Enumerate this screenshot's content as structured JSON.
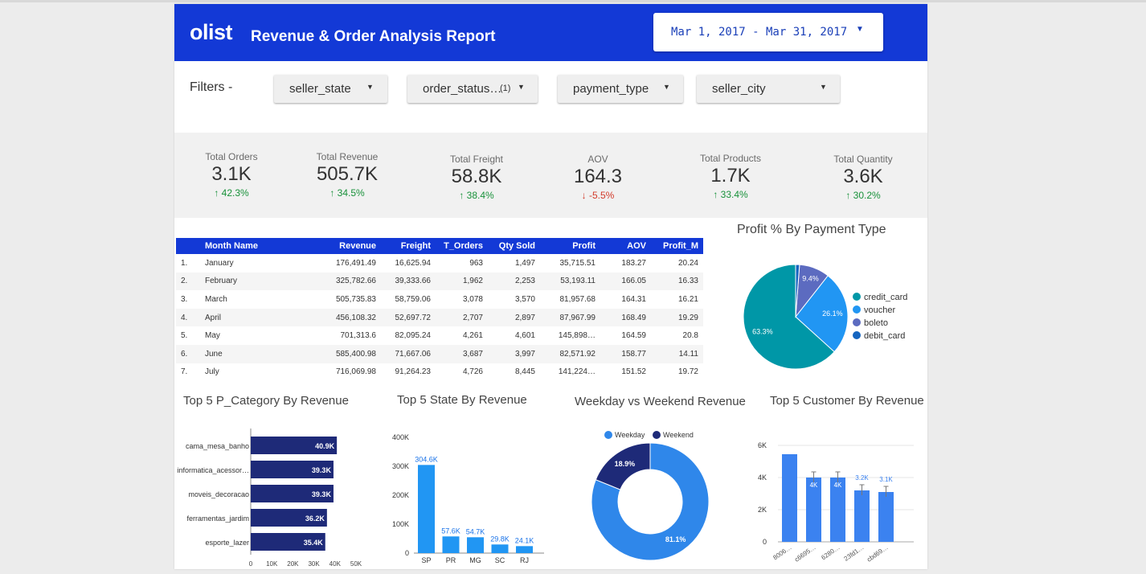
{
  "header": {
    "logo": "olist",
    "title": "Revenue & Order Analysis Report",
    "date_range": "Mar 1, 2017 - Mar 31, 2017",
    "date_caret": "▼"
  },
  "filters": {
    "label": "Filters -",
    "items": [
      {
        "label": "seller_state",
        "count": ""
      },
      {
        "label": "order_status…",
        "count": "(1)"
      },
      {
        "label": "payment_type",
        "count": ""
      },
      {
        "label": "seller_city",
        "count": ""
      }
    ],
    "caret": "▼"
  },
  "kpis": [
    {
      "label": "Total Orders",
      "value": "3.1K",
      "delta": "↑ 42.3%",
      "direction": "up"
    },
    {
      "label": "Total Revenue",
      "value": "505.7K",
      "delta": "↑ 34.5%",
      "direction": "up"
    },
    {
      "label": "Total Freight",
      "value": "58.8K",
      "delta": "↑ 38.4%",
      "direction": "up"
    },
    {
      "label": "AOV",
      "value": "164.3",
      "delta": "↓ -5.5%",
      "direction": "down"
    },
    {
      "label": "Total Products",
      "value": "1.7K",
      "delta": "↑ 33.4%",
      "direction": "up"
    },
    {
      "label": "Total Quantity",
      "value": "3.6K",
      "delta": "↑ 30.2%",
      "direction": "up"
    }
  ],
  "monthly_table": {
    "columns": [
      "",
      "Month Name",
      "Revenue",
      "Freight",
      "T_Orders",
      "Qty Sold",
      "Profit",
      "AOV",
      "Profit_M"
    ],
    "rows": [
      [
        "1.",
        "January",
        "176,491.49",
        "16,625.94",
        "963",
        "1,497",
        "35,715.51",
        "183.27",
        "20.24"
      ],
      [
        "2.",
        "February",
        "325,782.66",
        "39,333.66",
        "1,962",
        "2,253",
        "53,193.11",
        "166.05",
        "16.33"
      ],
      [
        "3.",
        "March",
        "505,735.83",
        "58,759.06",
        "3,078",
        "3,570",
        "81,957.68",
        "164.31",
        "16.21"
      ],
      [
        "4.",
        "April",
        "456,108.32",
        "52,697.72",
        "2,707",
        "2,897",
        "87,967.99",
        "168.49",
        "19.29"
      ],
      [
        "5.",
        "May",
        "701,313.6",
        "82,095.24",
        "4,261",
        "4,601",
        "145,898…",
        "164.59",
        "20.8"
      ],
      [
        "6.",
        "June",
        "585,400.98",
        "71,667.06",
        "3,687",
        "3,997",
        "82,571.92",
        "158.77",
        "14.11"
      ],
      [
        "7.",
        "July",
        "716,069.98",
        "91,264.23",
        "4,726",
        "8,445",
        "141,224…",
        "151.52",
        "19.72"
      ]
    ]
  },
  "chart_data": [
    {
      "type": "pie",
      "title": "Profit % By Payment Type",
      "categories": [
        "credit_card",
        "voucher",
        "boleto",
        "debit_card"
      ],
      "values": [
        63.3,
        26.1,
        9.4,
        1.2
      ],
      "labels": [
        "63.3%",
        "26.1%",
        "9.4%",
        ""
      ],
      "colors": [
        "#0097a7",
        "#2196f3",
        "#5c6bc0",
        "#1565c0"
      ],
      "legend": "right"
    },
    {
      "type": "bar",
      "orientation": "horizontal",
      "title": "Top 5 P_Category By Revenue",
      "categories": [
        "cama_mesa_banho",
        "informatica_acessor…",
        "moveis_decoracao",
        "ferramentas_jardim",
        "esporte_lazer"
      ],
      "values": [
        40.9,
        39.3,
        39.3,
        36.2,
        35.4
      ],
      "value_labels": [
        "40.9K",
        "39.3K",
        "39.3K",
        "36.2K",
        "35.4K"
      ],
      "xlim": [
        0,
        50
      ],
      "xticks": [
        "0",
        "10K",
        "20K",
        "30K",
        "40K",
        "50K"
      ],
      "color": "#1e2a78"
    },
    {
      "type": "bar",
      "title": "Top 5 State By Revenue",
      "categories": [
        "SP",
        "PR",
        "MG",
        "SC",
        "RJ"
      ],
      "values": [
        304.6,
        57.6,
        54.7,
        29.8,
        24.1
      ],
      "value_labels": [
        "304.6K",
        "57.6K",
        "54.7K",
        "29.8K",
        "24.1K"
      ],
      "ylim": [
        0,
        400
      ],
      "yticks": [
        "0",
        "100K",
        "200K",
        "300K",
        "400K"
      ],
      "color": "#2196f3"
    },
    {
      "type": "pie",
      "style": "donut",
      "title": "Weekday vs Weekend Revenue",
      "categories": [
        "Weekday",
        "Weekend"
      ],
      "values": [
        81.1,
        18.9
      ],
      "labels": [
        "81.1%",
        "18.9%"
      ],
      "colors": [
        "#2f87ea",
        "#1e2a78"
      ],
      "legend": "top"
    },
    {
      "type": "bar",
      "title": "Top 5 Customer By Revenue",
      "categories": [
        "8006…",
        "c6695…",
        "6280…",
        "23fd1…",
        "cbd69…"
      ],
      "values": [
        5.45,
        4.0,
        4.0,
        3.2,
        3.1
      ],
      "value_labels": [
        "",
        "4K",
        "4K",
        "3.2K",
        "3.1K"
      ],
      "ylim": [
        0,
        6
      ],
      "yticks": [
        "0",
        "2K",
        "4K",
        "6K"
      ],
      "grid": true,
      "error_bars": true,
      "color": "#3b82f0"
    }
  ]
}
